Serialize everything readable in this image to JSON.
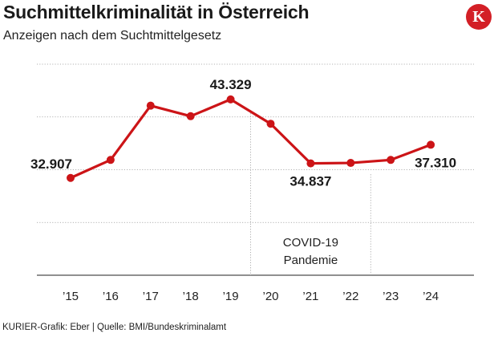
{
  "header": {
    "title": "Suchmittelkriminalität in Österreich",
    "subtitle": "Anzeigen nach dem Suchtmittelgesetz",
    "logo_letter": "K"
  },
  "footer": {
    "credit": "KURIER-Grafik: Eber | Quelle: BMI/Bundeskriminalamt"
  },
  "colors": {
    "series": "#cc1417",
    "grid": "#9a9a9a",
    "logo_bg": "#d31f26"
  },
  "chart_data": {
    "type": "line",
    "title": "Suchmittelkriminalität in Österreich",
    "subtitle": "Anzeigen nach dem Suchtmittelgesetz",
    "xlabel": "",
    "ylabel": "",
    "categories": [
      "’15",
      "’16",
      "’17",
      "’18",
      "’19",
      "’20",
      "’21",
      "’22",
      "’23",
      "’24"
    ],
    "series": [
      {
        "values": [
          32907,
          35300,
          42500,
          41100,
          43329,
          40100,
          34837,
          34900,
          35300,
          37310
        ]
      }
    ],
    "ylim": [
      20000,
      48000
    ],
    "grid": true,
    "data_labels": [
      {
        "index": 0,
        "text": "32.907",
        "position": "above-left"
      },
      {
        "index": 4,
        "text": "43.329",
        "position": "above"
      },
      {
        "index": 6,
        "text": "34.837",
        "position": "below"
      },
      {
        "index": 9,
        "text": "37.310",
        "position": "below"
      }
    ],
    "annotation": {
      "text_line1": "COVID-19",
      "text_line2": "Pandemie",
      "from_index": 4.5,
      "to_index": 7.5
    }
  }
}
